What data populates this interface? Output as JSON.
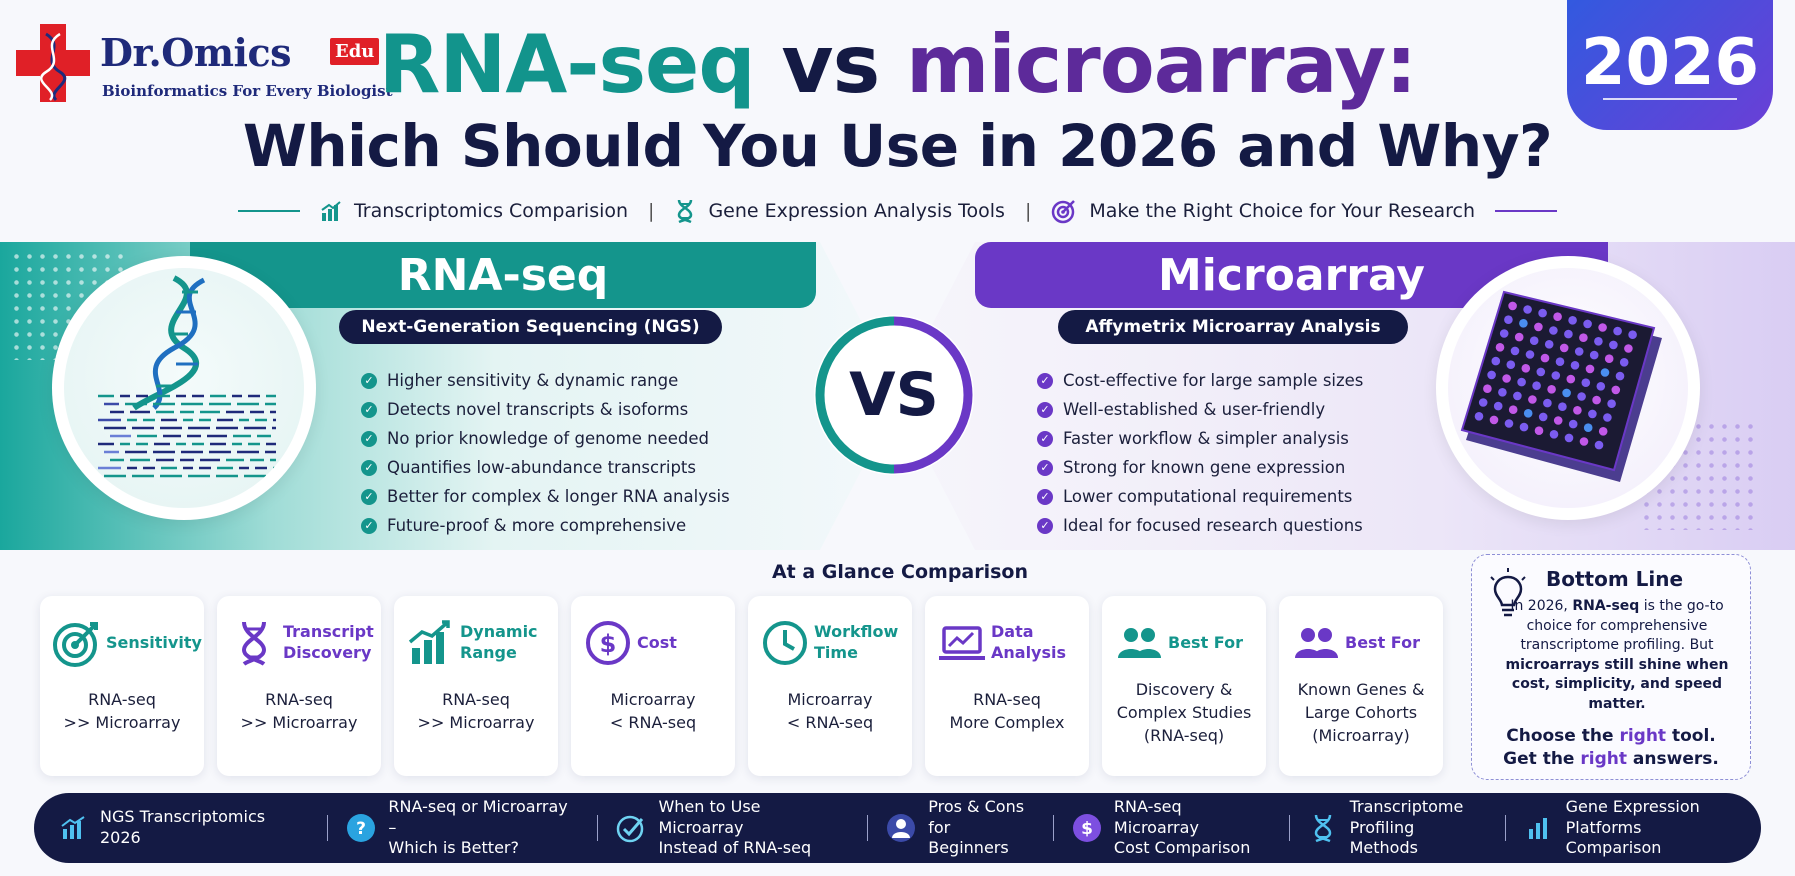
{
  "header": {
    "brand_name": "Dr.Omics",
    "brand_badge": "Edu",
    "brand_tagline": "Bioinformatics For Every Biologist",
    "title_part1": "RNA-seq",
    "title_part2": " vs ",
    "title_part3": "microarray:",
    "title_line2": "Which Should You Use in 2026 and Why?",
    "year_badge": "2026"
  },
  "subline": {
    "items": [
      {
        "label": "Transcriptomics Comparision",
        "icon": "bar-chart-icon"
      },
      {
        "label": "Gene Expression Analysis Tools",
        "icon": "dna-icon"
      },
      {
        "label": "Make the Right Choice for Your Research",
        "icon": "target-icon"
      }
    ],
    "separator": "|"
  },
  "rnaseq": {
    "title": "RNA-seq",
    "subtitle": "Next-Generation Sequencing (NGS)",
    "features": [
      "Higher sensitivity & dynamic range",
      "Detects novel transcripts & isoforms",
      "No prior knowledge of genome needed",
      "Quantifies low-abundance transcripts",
      "Better for complex & longer RNA analysis",
      "Future-proof & more comprehensive"
    ]
  },
  "vs_label": "VS",
  "microarray": {
    "title": "Microarray",
    "subtitle": "Affymetrix Microarray Analysis",
    "features": [
      "Cost-effective for large sample sizes",
      "Well-established & user-friendly",
      "Faster workflow & simpler analysis",
      "Strong for known gene expression",
      "Lower computational requirements",
      "Ideal for focused research questions"
    ]
  },
  "glance": {
    "title": "At a Glance Comparison",
    "cards": [
      {
        "label": "Sensitivity",
        "value": "RNA-seq\n>> Microarray",
        "icon": "target-icon",
        "color": "#14958c"
      },
      {
        "label": "Transcript Discovery",
        "value": "RNA-seq\n>> Microarray",
        "icon": "dna-icon",
        "color": "#6a38c6"
      },
      {
        "label": "Dynamic Range",
        "value": "RNA-seq\n>> Microarray",
        "icon": "bar-chart-icon",
        "color": "#14958c"
      },
      {
        "label": "Cost",
        "value": "Microarray\n< RNA-seq",
        "icon": "dollar-icon",
        "color": "#6a38c6"
      },
      {
        "label": "Workflow Time",
        "value": "Microarray\n< RNA-seq",
        "icon": "clock-icon",
        "color": "#14958c"
      },
      {
        "label": "Data Analysis",
        "value": "RNA-seq\nMore Complex",
        "icon": "laptop-chart-icon",
        "color": "#6a38c6"
      },
      {
        "label": "Best For",
        "value": "Discovery &\nComplex Studies\n(RNA-seq)",
        "icon": "people-icon",
        "color": "#14958c"
      },
      {
        "label": "Best For",
        "value": "Known Genes &\nLarge Cohorts\n(Microarray)",
        "icon": "people-icon",
        "color": "#6a38c6"
      }
    ]
  },
  "bottom_line": {
    "title": "Bottom Line",
    "text_1": "In 2026, ",
    "text_2": "RNA-seq",
    "text_3": " is the go-to choice for comprehensive transcriptome profiling. But ",
    "text_4": "microarrays still shine when cost, simplicity, and speed matter.",
    "cta_1a": "Choose the ",
    "cta_1b": "right",
    "cta_1c": " tool.",
    "cta_2a": "Get the ",
    "cta_2b": "right",
    "cta_2c": " answers."
  },
  "footer": {
    "items": [
      {
        "label": "NGS Transcriptomics 2026",
        "icon": "bar-chart-icon"
      },
      {
        "label": "RNA-seq or Microarray –\nWhich is Better?",
        "icon": "question-icon"
      },
      {
        "label": "When to Use Microarray\nInstead of RNA-seq",
        "icon": "check-target-icon"
      },
      {
        "label": "Pros & Cons\nfor Beginners",
        "icon": "user-icon"
      },
      {
        "label": "RNA-seq Microarray\nCost Comparison",
        "icon": "dollar-icon"
      },
      {
        "label": "Transcriptome\nProfiling Methods",
        "icon": "dna-icon"
      },
      {
        "label": "Gene Expression\nPlatforms Comparison",
        "icon": "bar-chart-icon"
      }
    ]
  },
  "colors": {
    "teal": "#14958c",
    "purple": "#6a38c6",
    "navy": "#141a44",
    "brand_red": "#e02027"
  }
}
